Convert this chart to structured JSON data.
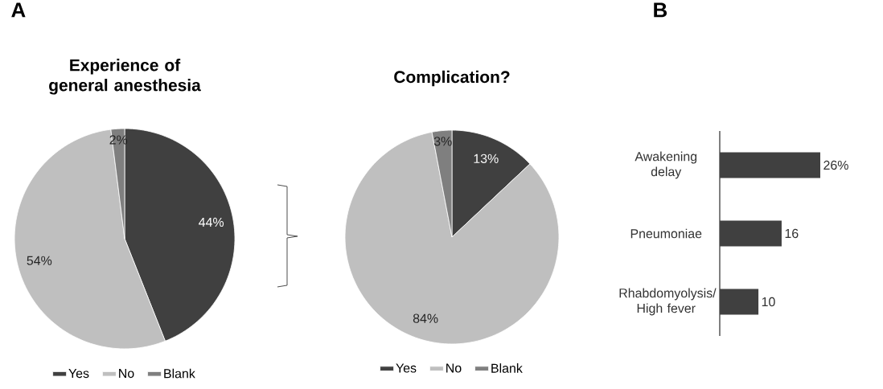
{
  "chart_data": [
    {
      "type": "pie",
      "title": "Experience of general anesthesia",
      "annotations": [
        "A"
      ],
      "categories": [
        "Yes",
        "No",
        "Blank"
      ],
      "values": [
        44,
        54,
        2
      ],
      "value_labels": [
        "44%",
        "54%",
        "2%"
      ],
      "colors": [
        "#404040",
        "#bfbfbf",
        "#7f7f7f"
      ],
      "legend": "bottom"
    },
    {
      "type": "pie",
      "title": "Complication?",
      "categories": [
        "Yes",
        "No",
        "Blank"
      ],
      "values": [
        13,
        84,
        3
      ],
      "value_labels": [
        "13%",
        "84%",
        "3%"
      ],
      "colors": [
        "#404040",
        "#bfbfbf",
        "#7f7f7f"
      ],
      "legend": "bottom"
    },
    {
      "type": "bar",
      "orientation": "horizontal",
      "annotations": [
        "B"
      ],
      "categories": [
        "Awakening delay",
        "Pneumoniae",
        "Rhabdomyolysis/ High fever"
      ],
      "values": [
        26,
        16,
        10
      ],
      "value_labels": [
        "26%",
        "16",
        "10"
      ],
      "color": "#404040"
    }
  ]
}
